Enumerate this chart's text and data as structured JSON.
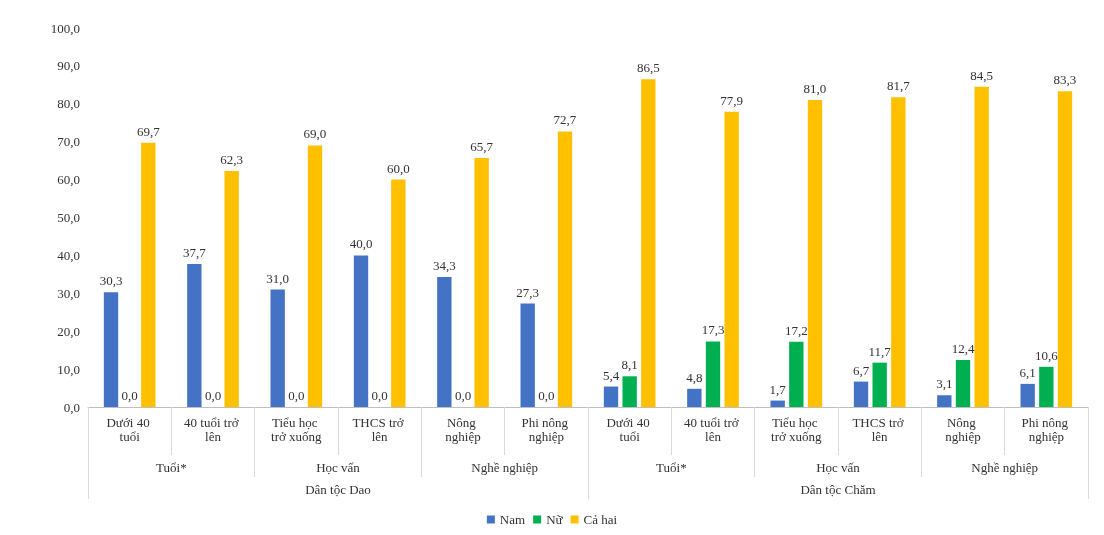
{
  "chart_data": {
    "type": "bar",
    "categories": [
      "Dưới 40 tuổi",
      "40 tuổi trở lên",
      "Tiểu học trở xuống",
      "THCS trở lên",
      "Nông nghiệp",
      "Phi nông nghiệp",
      "Dưới 40 tuổi",
      "40 tuổi trở lên",
      "Tiểu học trở xuống",
      "THCS trở lên",
      "Nông nghiệp",
      "Phi nông nghiệp"
    ],
    "series": [
      {
        "name": "Nam",
        "color": "#4472c4",
        "values": [
          30.3,
          37.7,
          31.0,
          40.0,
          34.3,
          27.3,
          5.4,
          4.8,
          1.7,
          6.7,
          3.1,
          6.1
        ],
        "value_labels": [
          "30,3",
          "37,7",
          "31,0",
          "40,0",
          "34,3",
          "27,3",
          "5,4",
          "4,8",
          "1,7",
          "6,7",
          "3,1",
          "6,1"
        ]
      },
      {
        "name": "Nữ",
        "color": "#00b050",
        "values": [
          0,
          0,
          0,
          0,
          0,
          0,
          8.1,
          17.3,
          17.2,
          11.7,
          12.4,
          10.6
        ],
        "value_labels": [
          "0,0",
          "0,0",
          "0,0",
          "0,0",
          "0,0",
          "0,0",
          "8,1",
          "17,3",
          "17,2",
          "11,7",
          "12,4",
          "10,6"
        ]
      },
      {
        "name": "Cả hai",
        "color": "#ffc000",
        "values": [
          69.7,
          62.3,
          69.0,
          60.0,
          65.7,
          72.7,
          86.5,
          77.9,
          81.0,
          81.7,
          84.5,
          83.3
        ],
        "value_labels": [
          "69,7",
          "62,3",
          "69,0",
          "60,0",
          "65,7",
          "72,7",
          "86,5",
          "77,9",
          "81,0",
          "81,7",
          "84,5",
          "83,3"
        ]
      }
    ],
    "ylim": [
      0,
      100
    ],
    "yticks": [
      {
        "value": 0,
        "label": "0,0"
      },
      {
        "value": 10,
        "label": "10,0"
      },
      {
        "value": 20,
        "label": "20,0"
      },
      {
        "value": 30,
        "label": "30,0"
      },
      {
        "value": 40,
        "label": "40,0"
      },
      {
        "value": 50,
        "label": "50,0"
      },
      {
        "value": 60,
        "label": "60,0"
      },
      {
        "value": 70,
        "label": "70,0"
      },
      {
        "value": 80,
        "label": "80,0"
      },
      {
        "value": 90,
        "label": "90,0"
      },
      {
        "value": 100,
        "label": "100,0"
      }
    ],
    "annotations": [
      "Tuổi*",
      "Học vấn",
      "Nghề nghiệp",
      "Tuổi*",
      "Học vấn",
      "Nghề nghiệp",
      "Dân tộc Dao",
      "Dân tộc Chăm"
    ],
    "grid": false,
    "legend": "bottom"
  }
}
